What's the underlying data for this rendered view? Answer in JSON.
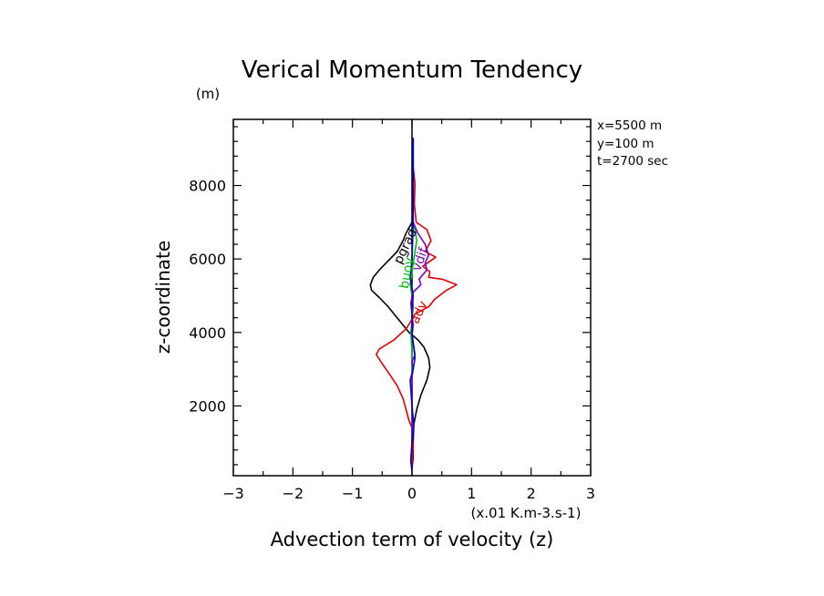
{
  "chart_data": {
    "type": "line",
    "title": "Verical Momentum Tendency",
    "xlabel": "Advection term of velocity (z)",
    "x_units": "(x.01 K.m-3.s-1)",
    "ylabel": "z-coordinate",
    "y_units": "(m)",
    "xlim": [
      -3,
      3
    ],
    "ylim": [
      100,
      9800
    ],
    "x_ticks": [
      -3,
      -2,
      -1,
      0,
      1,
      2,
      3
    ],
    "y_ticks": [
      2000,
      4000,
      6000,
      8000
    ],
    "grid": false,
    "info": [
      "x=5500 m",
      "y=100 m",
      "t=2700 sec"
    ],
    "series": [
      {
        "name": "pgrad",
        "color": "#000000",
        "points": [
          [
            0.02,
            9300
          ],
          [
            0.02,
            8000
          ],
          [
            0.02,
            7300
          ],
          [
            0,
            7000
          ],
          [
            -0.1,
            6700
          ],
          [
            -0.15,
            6500
          ],
          [
            -0.25,
            6200
          ],
          [
            -0.4,
            5950
          ],
          [
            -0.55,
            5700
          ],
          [
            -0.65,
            5500
          ],
          [
            -0.7,
            5300
          ],
          [
            -0.68,
            5150
          ],
          [
            -0.55,
            4950
          ],
          [
            -0.4,
            4700
          ],
          [
            -0.25,
            4400
          ],
          [
            -0.05,
            4000
          ],
          [
            0.1,
            3800
          ],
          [
            0.2,
            3600
          ],
          [
            0.28,
            3300
          ],
          [
            0.3,
            3050
          ],
          [
            0.25,
            2700
          ],
          [
            0.15,
            2300
          ],
          [
            0.08,
            1900
          ],
          [
            0.03,
            1500
          ],
          [
            0.02,
            1000
          ],
          [
            0.02,
            600
          ],
          [
            0,
            300
          ]
        ]
      },
      {
        "name": "adv",
        "color": "#e00000",
        "points": [
          [
            0.02,
            8500
          ],
          [
            0.05,
            8050
          ],
          [
            0.04,
            7500
          ],
          [
            0.07,
            7000
          ],
          [
            0.25,
            6800
          ],
          [
            0.32,
            6500
          ],
          [
            0.22,
            6200
          ],
          [
            0.4,
            6050
          ],
          [
            0.18,
            5800
          ],
          [
            0.3,
            5650
          ],
          [
            0.28,
            5500
          ],
          [
            0.5,
            5450
          ],
          [
            0.75,
            5300
          ],
          [
            0.58,
            5150
          ],
          [
            0.38,
            4900
          ],
          [
            0.28,
            4700
          ],
          [
            0.05,
            4500
          ],
          [
            -0.02,
            4300
          ],
          [
            -0.1,
            4100
          ],
          [
            -0.3,
            3800
          ],
          [
            -0.55,
            3550
          ],
          [
            -0.6,
            3400
          ],
          [
            -0.5,
            3150
          ],
          [
            -0.35,
            2800
          ],
          [
            -0.25,
            2550
          ],
          [
            -0.15,
            2200
          ],
          [
            -0.1,
            1900
          ],
          [
            -0.05,
            1600
          ],
          [
            0,
            1400
          ],
          [
            0.02,
            900
          ],
          [
            0,
            400
          ]
        ]
      },
      {
        "name": "buoy",
        "color": "#00c000",
        "points": [
          [
            0.02,
            7000
          ],
          [
            0.05,
            6800
          ],
          [
            0.08,
            6500
          ],
          [
            0.05,
            6200
          ],
          [
            0.02,
            5900
          ],
          [
            0.0,
            5600
          ],
          [
            -0.03,
            5300
          ],
          [
            0.0,
            5000
          ],
          [
            0.02,
            4700
          ],
          [
            0.0,
            4300
          ],
          [
            -0.02,
            4000
          ],
          [
            0.0,
            3500
          ],
          [
            0.0,
            3000
          ],
          [
            0.0,
            2000
          ],
          [
            0.0,
            1000
          ]
        ]
      },
      {
        "name": "vdif",
        "color": "#7a00c0",
        "points": [
          [
            0.02,
            7000
          ],
          [
            0.1,
            6700
          ],
          [
            0.22,
            6400
          ],
          [
            0.28,
            6100
          ],
          [
            0.22,
            5900
          ],
          [
            0.25,
            5700
          ],
          [
            0.12,
            5450
          ],
          [
            0.15,
            5300
          ],
          [
            0.02,
            5100
          ],
          [
            -0.02,
            4800
          ],
          [
            0.0,
            4500
          ],
          [
            0.02,
            4200
          ],
          [
            0.0,
            3900
          ],
          [
            0.03,
            3600
          ],
          [
            0.05,
            3400
          ],
          [
            0.0,
            3200
          ],
          [
            0.02,
            3000
          ],
          [
            0.0,
            2800
          ],
          [
            0.0,
            2000
          ],
          [
            0.0,
            1000
          ],
          [
            -0.02,
            500
          ],
          [
            0,
            200
          ]
        ]
      },
      {
        "name": "",
        "color": "#0000e0",
        "points": [
          [
            0.02,
            9300
          ],
          [
            0.02,
            7000
          ],
          [
            0.0,
            6000
          ],
          [
            -0.03,
            5500
          ],
          [
            0.02,
            5000
          ],
          [
            0.0,
            4500
          ],
          [
            0.0,
            4000
          ],
          [
            0.05,
            3300
          ],
          [
            0.02,
            3000
          ],
          [
            -0.03,
            2700
          ],
          [
            0.0,
            2000
          ],
          [
            0.03,
            1500
          ],
          [
            0.0,
            1000
          ],
          [
            -0.02,
            500
          ],
          [
            0,
            300
          ]
        ]
      }
    ],
    "curve_labels": [
      {
        "text": "pgrad",
        "series": "pgrad",
        "at": [
          -0.05,
          6300
        ],
        "angle": -65
      },
      {
        "text": "adv",
        "series": "adv",
        "at": [
          0.18,
          4500
        ],
        "angle": -65
      },
      {
        "text": "buoy",
        "series": "buoy",
        "at": [
          -0.02,
          5600
        ],
        "angle": -80
      },
      {
        "text": "vdif",
        "series": "vdif",
        "at": [
          0.2,
          5950
        ],
        "angle": -70
      }
    ]
  }
}
